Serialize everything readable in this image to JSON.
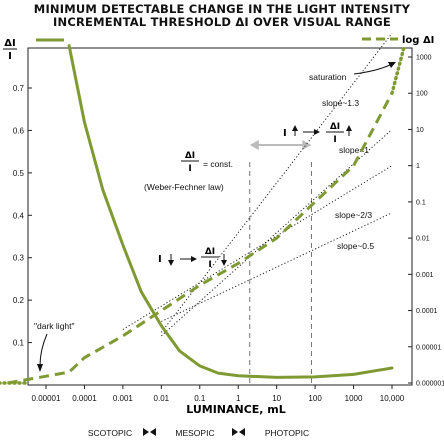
{
  "title_line1": "MINIMUM DETECTABLE CHANGE IN THE LIGHT INTENSITY",
  "title_line2": "INCREMENTAL THRESHOLD ΔI OVER VISUAL RANGE",
  "colors": {
    "curve": "#7f9a33",
    "dotted": "#222222",
    "guide": "#555555",
    "arrow": "#bbbbbb"
  },
  "chart_data": {
    "type": "line",
    "x_scale": "log",
    "xlabel": "LUMINANCE, mL",
    "x_ticks": [
      {
        "value": 1e-05,
        "label": "0.00001"
      },
      {
        "value": 0.0001,
        "label": "0.0001"
      },
      {
        "value": 0.001,
        "label": "0.001"
      },
      {
        "value": 0.01,
        "label": "0.01"
      },
      {
        "value": 0.1,
        "label": "0.1"
      },
      {
        "value": 1,
        "label": "1"
      },
      {
        "value": 10,
        "label": "10"
      },
      {
        "value": 100,
        "label": "100"
      },
      {
        "value": 1000,
        "label": "1000"
      },
      {
        "value": 10000,
        "label": "10,000"
      }
    ],
    "y_left": {
      "label_num": "ΔI",
      "label_den": "I",
      "ylim": [
        0,
        0.8
      ],
      "ticks": [
        {
          "value": 0.1,
          "label": "0.1"
        },
        {
          "value": 0.2,
          "label": "0.2"
        },
        {
          "value": 0.3,
          "label": "0.3"
        },
        {
          "value": 0.4,
          "label": "0.4"
        },
        {
          "value": 0.5,
          "label": "0.5"
        },
        {
          "value": 0.6,
          "label": "0.6"
        },
        {
          "value": 0.7,
          "label": "0.7"
        }
      ]
    },
    "y_right": {
      "scale": "log",
      "ticks": [
        {
          "value": 1000,
          "label": "1000"
        },
        {
          "value": 100,
          "label": "100"
        },
        {
          "value": 10,
          "label": "10"
        },
        {
          "value": 1,
          "label": "1"
        },
        {
          "value": 0.1,
          "label": "0.1"
        },
        {
          "value": 0.01,
          "label": "0.01"
        },
        {
          "value": 0.001,
          "label": "0.001"
        },
        {
          "value": 0.0001,
          "label": "0.0001"
        },
        {
          "value": 1e-05,
          "label": "0.00001"
        },
        {
          "value": 1e-06,
          "label": "0.000001"
        }
      ]
    },
    "legend": {
      "placement": "top",
      "series_left": "",
      "series_right": "log ΔI"
    },
    "series": [
      {
        "name": "",
        "axis": "left",
        "style": "solid",
        "points": [
          [
            4e-05,
            0.8
          ],
          [
            0.0001,
            0.62
          ],
          [
            0.0003,
            0.46
          ],
          [
            0.001,
            0.33
          ],
          [
            0.003,
            0.22
          ],
          [
            0.01,
            0.14
          ],
          [
            0.03,
            0.08
          ],
          [
            0.1,
            0.045
          ],
          [
            0.3,
            0.028
          ],
          [
            1,
            0.022
          ],
          [
            10,
            0.018
          ],
          [
            100,
            0.019
          ],
          [
            1000,
            0.025
          ],
          [
            10000,
            0.04
          ]
        ]
      },
      {
        "name": "log ΔI",
        "axis": "right",
        "style": "dashed",
        "points": [
          [
            1e-06,
            1e-06
          ],
          [
            4e-05,
            2e-06
          ],
          [
            0.0001,
            5e-06
          ],
          [
            0.001,
            2e-05
          ],
          [
            0.01,
            0.0001
          ],
          [
            0.1,
            0.0005
          ],
          [
            1,
            0.002
          ],
          [
            10,
            0.01
          ],
          [
            100,
            0.1
          ],
          [
            1000,
            1
          ],
          [
            10000,
            100
          ]
        ]
      },
      {
        "name": "",
        "axis": "right",
        "style": "dotted",
        "points": [
          [
            6e-07,
            1e-06
          ],
          [
            3e-06,
            1e-06
          ]
        ]
      },
      {
        "name": "",
        "axis": "right",
        "style": "dotted",
        "points": [
          [
            10000,
            100
          ],
          [
            20000,
            1700
          ]
        ]
      }
    ],
    "slope_lines": [
      {
        "label": "slope~1.3",
        "from": [
          0.01,
          2.5e-05
        ],
        "to": [
          10000,
          4500
        ]
      },
      {
        "label": "slope=1",
        "from": [
          0.01,
          2e-05
        ],
        "to": [
          10000,
          10
        ]
      },
      {
        "label": "slope~2/3",
        "from": [
          0.001,
          3e-05
        ],
        "to": [
          10000,
          1
        ]
      },
      {
        "label": "slope~0.5",
        "from": [
          0.01,
          5e-05
        ],
        "to": [
          10000,
          0.05
        ]
      }
    ],
    "vertical_guides": [
      2,
      80
    ],
    "annotations": {
      "const_num": "ΔI",
      "const_den": "I",
      "const_eq": "= const.",
      "weber": "(Weber-Fechner law)",
      "saturation": "saturation",
      "dark_light": "\"dark light\"",
      "low_I": "I",
      "high_I": "I",
      "frac_num": "ΔI",
      "frac_den": "I"
    },
    "range_labels": {
      "scotopic": "SCOTOPIC",
      "mesopic": "MESOPIC",
      "photopic": "PHOTOPIC"
    }
  }
}
